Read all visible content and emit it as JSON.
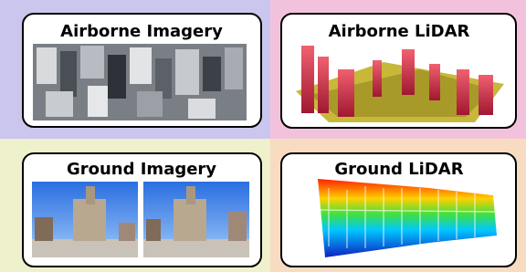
{
  "panels": [
    {
      "title": "Airborne Imagery"
    },
    {
      "title": "Airborne LiDAR"
    },
    {
      "title": "Ground Imagery"
    },
    {
      "title": "Ground LiDAR"
    }
  ]
}
